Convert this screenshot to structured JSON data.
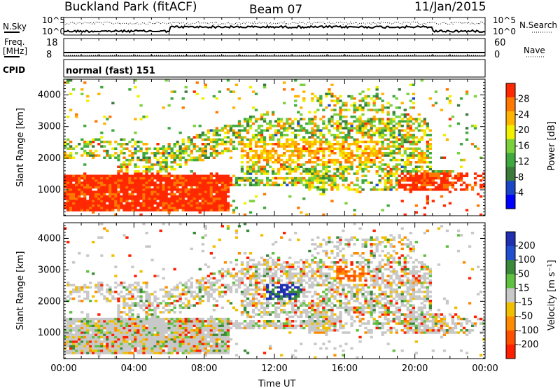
{
  "header": {
    "site": "Buckland Park (fitACF)",
    "beam": "Beam 07",
    "date": "11/Jan/2015"
  },
  "noise_panel": {
    "left_label": "N.Sky",
    "right_label": "N.Search",
    "left_ticks": [
      "10^5",
      "10^0"
    ],
    "right_ticks": [
      "10^5",
      "10^0"
    ]
  },
  "freq_panel": {
    "left_label_line1": "Freq.",
    "left_label_line2": "[MHz]",
    "right_label": "Nave",
    "left_ticks": [
      "18",
      "8"
    ],
    "right_ticks": [
      "60",
      "0"
    ]
  },
  "cpid_panel": {
    "label": "CPID",
    "value": "normal (fast) 151"
  },
  "chart_data": [
    {
      "type": "heatmap",
      "variable": "Power",
      "ylabel": "Slant Range [km]",
      "xlabel": "Time UT",
      "x_ticks": [
        "00:00",
        "04:00",
        "08:00",
        "12:00",
        "16:00",
        "20:00",
        "00:00"
      ],
      "y_ticks": [
        1000,
        2000,
        3000,
        4000
      ],
      "ylim": [
        180,
        4500
      ],
      "xlim_hours": [
        0,
        24
      ],
      "colorbar": {
        "label": "Power [dB]",
        "ticks": [
          4,
          8,
          12,
          16,
          20,
          24,
          28
        ],
        "range": [
          0,
          32
        ],
        "colors": [
          "#0000ff",
          "#1a46c8",
          "#3c7a3c",
          "#3fa93f",
          "#7bd13b",
          "#f0f000",
          "#ffb400",
          "#ff7800",
          "#ff2800"
        ]
      }
    },
    {
      "type": "heatmap",
      "variable": "Velocity",
      "ylabel": "Slant Range [km]",
      "xlabel": "Time UT",
      "x_ticks": [
        "00:00",
        "04:00",
        "08:00",
        "12:00",
        "16:00",
        "20:00",
        "00:00"
      ],
      "y_ticks": [
        1000,
        2000,
        3000,
        4000
      ],
      "ylim": [
        180,
        4500
      ],
      "xlim_hours": [
        0,
        24
      ],
      "colorbar": {
        "label": "Velocity [m s⁻¹]",
        "ticks": [
          200,
          100,
          50,
          15,
          -15,
          -50,
          -100,
          -200
        ],
        "range": [
          -250,
          250
        ],
        "colors": [
          "#2030b0",
          "#2050d0",
          "#3a8a3a",
          "#60c040",
          "#c8c8c8",
          "#f0c000",
          "#ff8c00",
          "#ff5000",
          "#ff1e00"
        ]
      }
    }
  ],
  "xlabel": "Time UT"
}
